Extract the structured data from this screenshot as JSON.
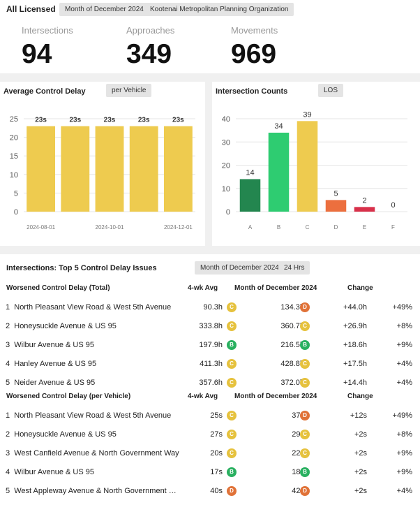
{
  "header": {
    "title": "All Licensed",
    "period_pill": "Month of December 2024",
    "org_pill": "Kootenai Metropolitan Planning Organization"
  },
  "stats": [
    {
      "label": "Intersections",
      "value": "94"
    },
    {
      "label": "Approaches",
      "value": "349"
    },
    {
      "label": "Movements",
      "value": "969"
    }
  ],
  "delay_chart": {
    "title": "Average Control Delay",
    "pill": "per Vehicle"
  },
  "counts_chart": {
    "title": "Intersection Counts",
    "pill": "LOS"
  },
  "chart_data": [
    {
      "type": "bar",
      "title": "Average Control Delay",
      "categories": [
        "2024-08",
        "2024-09",
        "2024-10",
        "2024-11",
        "2024-12"
      ],
      "x_tick_labels": [
        "2024-08-01",
        "2024-10-01",
        "2024-12-01"
      ],
      "values": [
        23,
        23,
        23,
        23,
        23
      ],
      "data_labels": [
        "23s",
        "23s",
        "23s",
        "23s",
        "23s"
      ],
      "ylim": [
        0,
        25
      ],
      "yticks": [
        0,
        5,
        10,
        15,
        20,
        25
      ],
      "grid": true,
      "color": "#eecb4f"
    },
    {
      "type": "bar",
      "title": "Intersection Counts",
      "categories": [
        "A",
        "B",
        "C",
        "D",
        "E",
        "F"
      ],
      "values": [
        14,
        34,
        39,
        5,
        2,
        0
      ],
      "colors": [
        "#23864f",
        "#2ecc71",
        "#eecb4f",
        "#ec6f3e",
        "#d8304a",
        "#d8304a"
      ],
      "ylim": [
        0,
        40
      ],
      "yticks": [
        0,
        10,
        20,
        30,
        40
      ],
      "grid": true
    }
  ],
  "table": {
    "title": "Intersections: Top 5 Control Delay Issues",
    "period_pill": "Month of December 2024",
    "hours_pill": "24 Hrs",
    "sections": [
      {
        "headers": {
          "name": "Worsened Control Delay (Total)",
          "avg": "4-wk Avg",
          "month": "Month of December 2024",
          "change": "Change"
        },
        "rows": [
          {
            "rank": "1",
            "name": "North Pleasant View Road & West 5th Avenue",
            "avg": "90.3h",
            "avg_grade": "C",
            "month": "134.3h",
            "month_grade": "D",
            "change": "+44.0h",
            "pct": "+49%"
          },
          {
            "rank": "2",
            "name": "Honeysuckle Avenue & US 95",
            "avg": "333.8h",
            "avg_grade": "C",
            "month": "360.7h",
            "month_grade": "C",
            "change": "+26.9h",
            "pct": "+8%"
          },
          {
            "rank": "3",
            "name": "Wilbur Avenue & US 95",
            "avg": "197.9h",
            "avg_grade": "B",
            "month": "216.5h",
            "month_grade": "B",
            "change": "+18.6h",
            "pct": "+9%"
          },
          {
            "rank": "4",
            "name": "Hanley Avenue & US 95",
            "avg": "411.3h",
            "avg_grade": "C",
            "month": "428.8h",
            "month_grade": "C",
            "change": "+17.5h",
            "pct": "+4%"
          },
          {
            "rank": "5",
            "name": "Neider Avenue & US 95",
            "avg": "357.6h",
            "avg_grade": "C",
            "month": "372.0h",
            "month_grade": "C",
            "change": "+14.4h",
            "pct": "+4%"
          }
        ]
      },
      {
        "headers": {
          "name": "Worsened Control Delay (per Vehicle)",
          "avg": "4-wk Avg",
          "month": "Month of December 2024",
          "change": "Change"
        },
        "rows": [
          {
            "rank": "1",
            "name": "North Pleasant View Road & West 5th Avenue",
            "avg": "25s",
            "avg_grade": "C",
            "month": "37s",
            "month_grade": "D",
            "change": "+12s",
            "pct": "+49%"
          },
          {
            "rank": "2",
            "name": "Honeysuckle Avenue & US 95",
            "avg": "27s",
            "avg_grade": "C",
            "month": "29s",
            "month_grade": "C",
            "change": "+2s",
            "pct": "+8%"
          },
          {
            "rank": "3",
            "name": "West Canfield Avenue & North Government Way",
            "avg": "20s",
            "avg_grade": "C",
            "month": "22s",
            "month_grade": "C",
            "change": "+2s",
            "pct": "+9%"
          },
          {
            "rank": "4",
            "name": "Wilbur Avenue & US 95",
            "avg": "17s",
            "avg_grade": "B",
            "month": "18s",
            "month_grade": "B",
            "change": "+2s",
            "pct": "+9%"
          },
          {
            "rank": "5",
            "name": "West Appleway Avenue & North Government W...",
            "avg": "40s",
            "avg_grade": "D",
            "month": "42s",
            "month_grade": "D",
            "change": "+2s",
            "pct": "+4%"
          }
        ]
      }
    ]
  }
}
